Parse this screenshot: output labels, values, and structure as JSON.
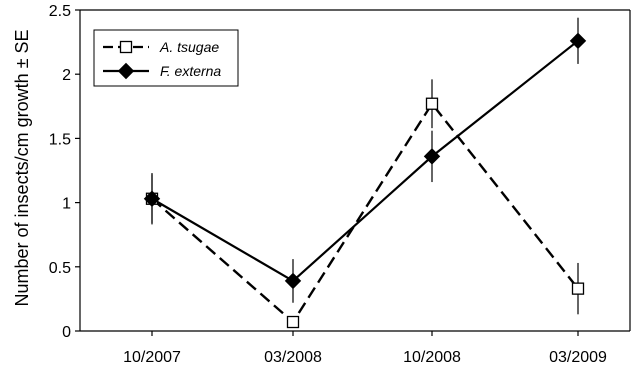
{
  "chart_data": {
    "type": "line",
    "categories": [
      "10/2007",
      "03/2008",
      "10/2008",
      "03/2009"
    ],
    "ylabel": "Number of insects/cm growth ± SE",
    "xlabel": "",
    "ylim": [
      0,
      2.5
    ],
    "yticks": [
      "0",
      "0.5",
      "1",
      "1.5",
      "2",
      "2.5"
    ],
    "grid": false,
    "legend_position": "top-left",
    "series": [
      {
        "name": "A. tsugae",
        "marker": "open-square",
        "line_style": "dashed",
        "color": "#000000",
        "values": [
          1.03,
          0.07,
          1.77,
          0.33
        ],
        "se": [
          0.19,
          0.04,
          0.19,
          0.2
        ]
      },
      {
        "name": "F. externa",
        "marker": "filled-diamond",
        "line_style": "solid",
        "color": "#000000",
        "values": [
          1.03,
          0.39,
          1.36,
          2.26
        ],
        "se": [
          0.2,
          0.17,
          0.2,
          0.18
        ]
      }
    ]
  }
}
